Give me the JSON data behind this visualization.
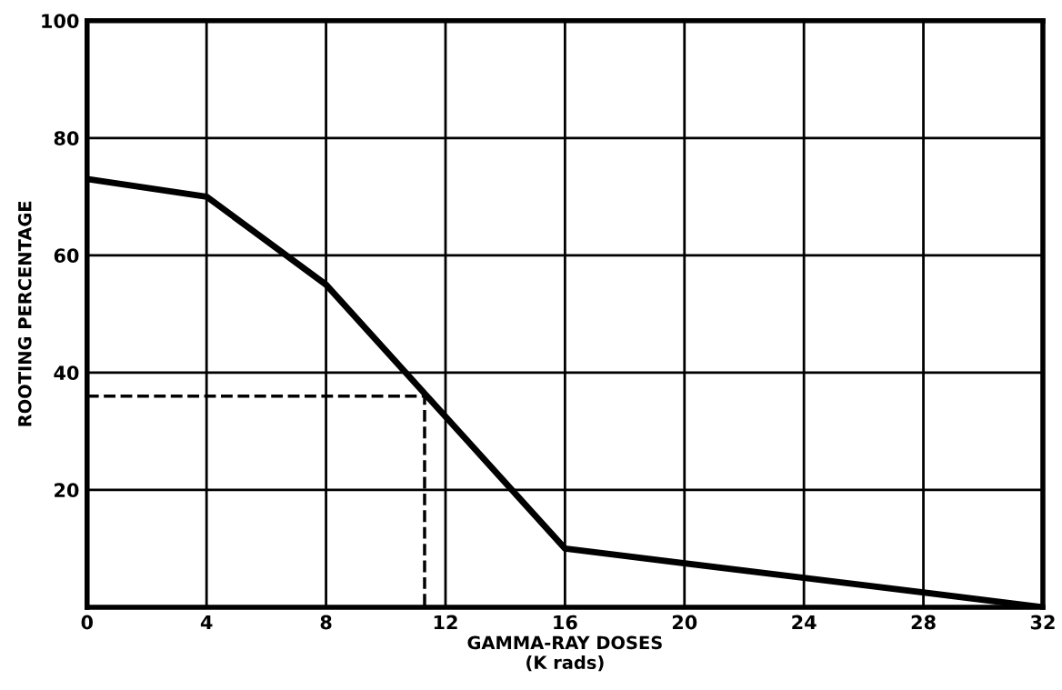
{
  "chart_data": {
    "type": "line",
    "xlabel": "GAMMA-RAY DOSES\n(K rads)",
    "ylabel": "ROOTING PERCENTAGE",
    "series": [
      {
        "color": "#000000",
        "x": [
          0,
          4,
          8,
          16,
          24,
          32
        ],
        "values": [
          73,
          70,
          55,
          10,
          5,
          0
        ],
        "line_style": "solid"
      },
      {
        "color": "#000000",
        "x": [
          0,
          11.3,
          11.3
        ],
        "values": [
          36,
          36,
          0
        ],
        "line_style": "dashed"
      }
    ],
    "xlim": [
      0,
      32
    ],
    "xticks": [
      0,
      4,
      8,
      12,
      16,
      20,
      24,
      28,
      32
    ],
    "ylim": [
      0,
      100
    ],
    "yticks": [
      20,
      40,
      60,
      80,
      100
    ],
    "grid": true,
    "marker": "none"
  }
}
